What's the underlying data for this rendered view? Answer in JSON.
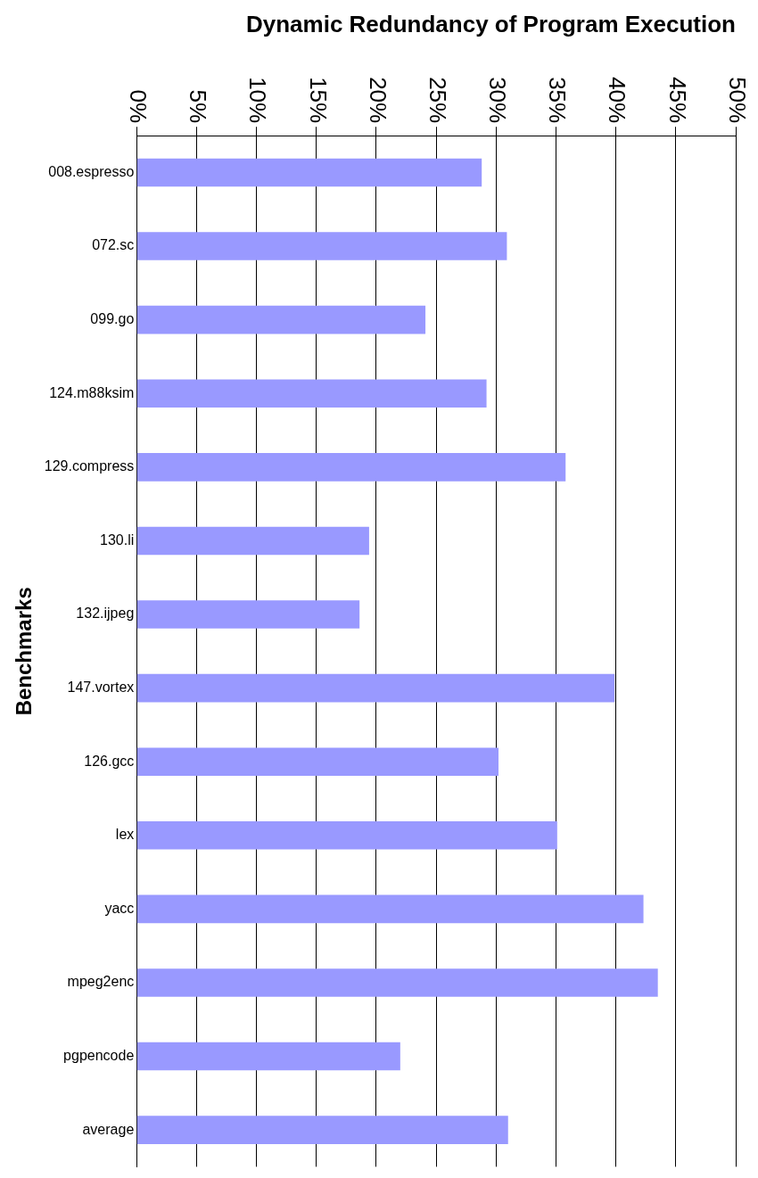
{
  "chart_data": {
    "type": "bar",
    "orientation": "horizontal",
    "title": "Dynamic Redundancy of Program Execution",
    "ylabel": "Benchmarks",
    "categories": [
      "008.espresso",
      "072.sc",
      "099.go",
      "124.m88ksim",
      "129.compress",
      "130.li",
      "132.ijpeg",
      "147.vortex",
      "126.gcc",
      "lex",
      "yacc",
      "mpeg2enc",
      "pgpencode",
      "average"
    ],
    "values": [
      28.8,
      30.9,
      24.1,
      29.2,
      35.8,
      19.4,
      18.6,
      39.9,
      30.2,
      35.1,
      42.3,
      43.5,
      22.0,
      31.0
    ],
    "color": "#9999ff",
    "xlim": [
      0,
      50
    ],
    "xticks": [
      {
        "value": 0,
        "label": "0%"
      },
      {
        "value": 5,
        "label": "5%"
      },
      {
        "value": 10,
        "label": "10%"
      },
      {
        "value": 15,
        "label": "15%"
      },
      {
        "value": 20,
        "label": "20%"
      },
      {
        "value": 25,
        "label": "25%"
      },
      {
        "value": 30,
        "label": "30%"
      },
      {
        "value": 35,
        "label": "35%"
      },
      {
        "value": 40,
        "label": "40%"
      },
      {
        "value": 45,
        "label": "45%"
      },
      {
        "value": 50,
        "label": "50%"
      }
    ],
    "grid": "x",
    "legend": false
  }
}
